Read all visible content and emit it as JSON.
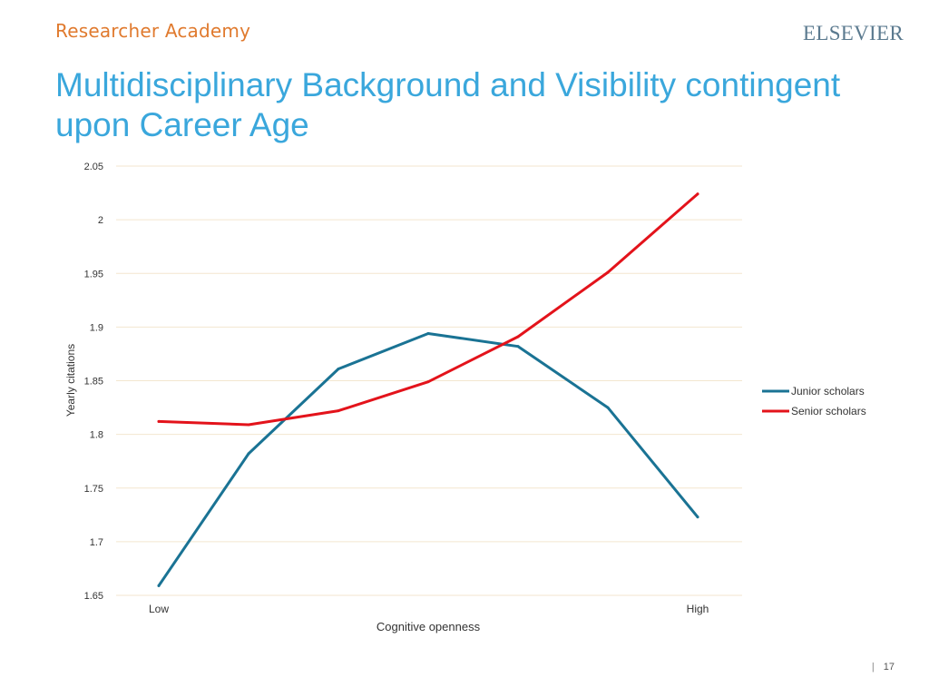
{
  "header": {
    "brand": "Researcher Academy",
    "publisher": "ELSEVIER",
    "title": "Multidisciplinary Background and Visibility contingent upon Career Age"
  },
  "colors": {
    "brand": "#e07a2e",
    "title": "#3aa7dc",
    "publisher": "#5b7a8f",
    "grid": "#f3e6cf"
  },
  "chart_data": {
    "type": "line",
    "title": "",
    "xlabel": "Cognitive openness",
    "ylabel": "Yearly citations",
    "x": [
      1,
      2,
      3,
      4,
      5,
      6,
      7
    ],
    "x_tick_labels": [
      {
        "x": 1,
        "label": "Low"
      },
      {
        "x": 7,
        "label": "High"
      }
    ],
    "ylim": [
      1.65,
      2.05
    ],
    "y_ticks": [
      {
        "value": 2.05,
        "label": "2.05"
      },
      {
        "value": 2.0,
        "label": "2"
      },
      {
        "value": 1.95,
        "label": "1.95"
      },
      {
        "value": 1.9,
        "label": "1.9"
      },
      {
        "value": 1.85,
        "label": "1.85"
      },
      {
        "value": 1.8,
        "label": "1.8"
      },
      {
        "value": 1.75,
        "label": "1.75"
      },
      {
        "value": 1.7,
        "label": "1.7"
      },
      {
        "value": 1.65,
        "label": "1.65"
      }
    ],
    "grid": true,
    "legend_position": "right",
    "series": [
      {
        "name": "Junior scholars",
        "color": "#1a7394",
        "values": [
          1.659,
          1.782,
          1.861,
          1.894,
          1.882,
          1.825,
          1.723
        ]
      },
      {
        "name": "Senior scholars",
        "color": "#e3131b",
        "values": [
          1.812,
          1.809,
          1.822,
          1.849,
          1.891,
          1.951,
          2.024
        ]
      }
    ]
  },
  "footer": {
    "separator": "|",
    "page_number": "17"
  }
}
